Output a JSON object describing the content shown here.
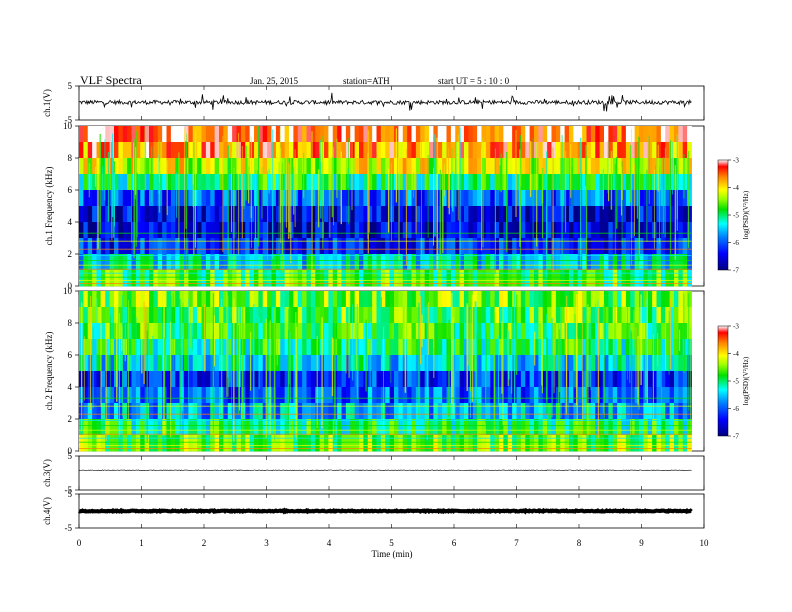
{
  "header": {
    "title": "VLF  Spectra",
    "date": "Jan. 25, 2015",
    "station": "station=ATH",
    "start": "start  UT =   5  : 10 : 0"
  },
  "colors": {
    "spectrogram": [
      "#00008b",
      "#0000ff",
      "#0080ff",
      "#00c8ff",
      "#00e676",
      "#80ff00",
      "#ffff00",
      "#ff8000",
      "#ff0000"
    ],
    "trace": "#000000",
    "axis": "#000000"
  },
  "chart_data": [
    {
      "type": "line",
      "name": "ch1-waveform",
      "ylabel": "ch.1(V)",
      "ylim": [
        -5,
        5
      ],
      "yticks": [
        "5",
        "-5"
      ],
      "xlim": [
        0,
        10
      ],
      "baseline": 0.2,
      "amplitude_typical": 0.6,
      "spikes_max": 2.5,
      "data_end_min": 9.8
    },
    {
      "type": "heatmap",
      "name": "ch1-spectrogram",
      "ylabel": "ch.1 Frequency (kHz)",
      "ylim": [
        0,
        10
      ],
      "yticks": [
        "0",
        "2",
        "4",
        "6",
        "8",
        "10"
      ],
      "xlim": [
        0,
        10
      ],
      "data_end_min": 9.8,
      "colorbar": {
        "label": "log(PSD)(V²/Hz)",
        "ticks": [
          "-3",
          "-4",
          "-5",
          "-6",
          "-7"
        ],
        "range": [
          -7,
          -3
        ]
      },
      "rows_log_psd": [
        {
          "freq_khz": 9.5,
          "value": -3.3
        },
        {
          "freq_khz": 8.5,
          "value": -3.6
        },
        {
          "freq_khz": 7.5,
          "value": -4.2
        },
        {
          "freq_khz": 6.5,
          "value": -5.0
        },
        {
          "freq_khz": 5.5,
          "value": -6.0
        },
        {
          "freq_khz": 4.5,
          "value": -6.5
        },
        {
          "freq_khz": 3.5,
          "value": -6.6
        },
        {
          "freq_khz": 2.5,
          "value": -6.3
        },
        {
          "freq_khz": 1.5,
          "value": -5.4
        },
        {
          "freq_khz": 0.5,
          "value": -4.8
        }
      ]
    },
    {
      "type": "heatmap",
      "name": "ch2-spectrogram",
      "ylabel": "ch.2 Frequency (kHz)",
      "ylim": [
        0,
        10
      ],
      "yticks": [
        "0",
        "2",
        "4",
        "6",
        "8",
        "10"
      ],
      "xlim": [
        0,
        10
      ],
      "data_end_min": 9.8,
      "colorbar": {
        "label": "log(PSD)(V²/Hz)",
        "ticks": [
          "-3",
          "-4",
          "-5",
          "-6",
          "-7"
        ],
        "range": [
          -7,
          -3
        ]
      },
      "rows_log_psd": [
        {
          "freq_khz": 9.5,
          "value": -4.6
        },
        {
          "freq_khz": 8.5,
          "value": -4.7
        },
        {
          "freq_khz": 7.5,
          "value": -4.8
        },
        {
          "freq_khz": 6.5,
          "value": -5.0
        },
        {
          "freq_khz": 5.5,
          "value": -5.4
        },
        {
          "freq_khz": 4.5,
          "value": -6.2
        },
        {
          "freq_khz": 3.5,
          "value": -6.0
        },
        {
          "freq_khz": 2.5,
          "value": -5.6
        },
        {
          "freq_khz": 1.5,
          "value": -5.0
        },
        {
          "freq_khz": 0.5,
          "value": -4.6
        }
      ]
    },
    {
      "type": "line",
      "name": "ch3-waveform",
      "ylabel": "ch.3(V)",
      "ylim": [
        -5,
        5
      ],
      "yticks": [
        "5",
        "-5"
      ],
      "xlim": [
        0,
        10
      ],
      "baseline": 0.8,
      "amplitude_typical": 0.1,
      "data_end_min": 9.8
    },
    {
      "type": "line",
      "name": "ch4-waveform",
      "ylabel": "ch.4(V)",
      "ylim": [
        -5,
        5
      ],
      "yticks": [
        "5",
        "-5"
      ],
      "xlim": [
        0,
        10
      ],
      "baseline": 0.0,
      "amplitude_typical": 0.15,
      "data_end_min": 9.8
    }
  ],
  "xaxis": {
    "label": "Time  (min)",
    "ticks": [
      "0",
      "1",
      "2",
      "3",
      "4",
      "5",
      "6",
      "7",
      "8",
      "9",
      "10"
    ]
  }
}
